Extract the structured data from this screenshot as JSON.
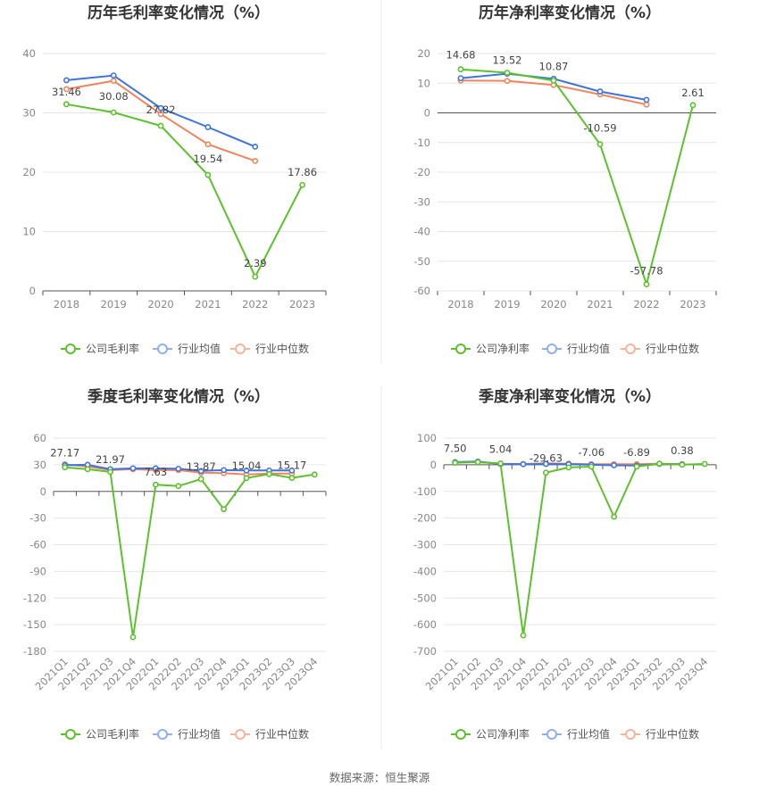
{
  "chart_data": [
    {
      "type": "line",
      "title": "历年毛利率变化情况（%）",
      "categories": [
        "2018",
        "2019",
        "2020",
        "2021",
        "2022",
        "2023"
      ],
      "ylim": [
        0,
        40
      ],
      "yticks": [
        0,
        10,
        20,
        30,
        40
      ],
      "series": [
        {
          "name": "公司毛利率",
          "color": "#5cc12d",
          "values": [
            31.46,
            30.08,
            27.82,
            19.54,
            2.39,
            17.86
          ],
          "labels": [
            "31.46",
            "30.08",
            "27.82",
            "19.54",
            "2.39",
            "17.86"
          ]
        },
        {
          "name": "行业均值",
          "color": "#3f74dc",
          "values": [
            35.5,
            36.3,
            30.8,
            27.6,
            24.3,
            null
          ]
        },
        {
          "name": "行业中位数",
          "color": "#f0855d",
          "values": [
            34.0,
            35.4,
            29.8,
            24.7,
            21.9,
            null
          ]
        }
      ]
    },
    {
      "type": "line",
      "title": "历年净利率变化情况（%）",
      "categories": [
        "2018",
        "2019",
        "2020",
        "2021",
        "2022",
        "2023"
      ],
      "ylim": [
        -60,
        20
      ],
      "yticks": [
        -60,
        -50,
        -40,
        -30,
        -20,
        -10,
        0,
        10,
        20
      ],
      "series": [
        {
          "name": "公司净利率",
          "color": "#5cc12d",
          "values": [
            14.68,
            13.52,
            10.87,
            -10.59,
            -57.78,
            2.61
          ],
          "labels": [
            "14.68",
            "13.52",
            "10.87",
            "-10.59",
            "-57.78",
            "2.61"
          ]
        },
        {
          "name": "行业均值",
          "color": "#3f74dc",
          "values": [
            11.7,
            13.2,
            11.5,
            7.2,
            4.4,
            null
          ]
        },
        {
          "name": "行业中位数",
          "color": "#f0855d",
          "values": [
            10.9,
            10.8,
            9.4,
            6.2,
            2.8,
            null
          ]
        }
      ]
    },
    {
      "type": "line",
      "title": "季度毛利率变化情况（%）",
      "categories": [
        "2021Q1",
        "2021Q2",
        "2021Q3",
        "2021Q4",
        "2022Q1",
        "2022Q2",
        "2022Q3",
        "2022Q4",
        "2023Q1",
        "2023Q2",
        "2023Q3",
        "2023Q4"
      ],
      "ylim": [
        -180,
        60
      ],
      "yticks": [
        -180,
        -150,
        -120,
        -90,
        -60,
        -30,
        0,
        30,
        60
      ],
      "series": [
        {
          "name": "公司毛利率",
          "color": "#5cc12d",
          "values": [
            27.17,
            25.0,
            21.97,
            -164.0,
            7.63,
            6.0,
            13.87,
            -20.0,
            15.04,
            19.5,
            15.17,
            19.0
          ],
          "labels": [
            "27.17",
            "",
            "21.97",
            "",
            "7.63",
            "",
            "13.87",
            "",
            "15.04",
            "",
            "15.17",
            ""
          ]
        },
        {
          "name": "行业均值",
          "color": "#3f74dc",
          "values": [
            29.5,
            30.0,
            25.0,
            26.0,
            26.0,
            25.5,
            23.0,
            24.0,
            23.5,
            23.5,
            23.5,
            null
          ]
        },
        {
          "name": "行业中位数",
          "color": "#f0855d",
          "values": [
            30.5,
            28.0,
            24.0,
            25.0,
            24.0,
            24.0,
            21.0,
            20.5,
            19.0,
            20.0,
            20.0,
            null
          ]
        }
      ]
    },
    {
      "type": "line",
      "title": "季度净利率变化情况（%）",
      "categories": [
        "2021Q1",
        "2021Q2",
        "2021Q3",
        "2021Q4",
        "2022Q1",
        "2022Q2",
        "2022Q3",
        "2022Q4",
        "2023Q1",
        "2023Q2",
        "2023Q3",
        "2023Q4"
      ],
      "ylim": [
        -700,
        100
      ],
      "yticks": [
        -700,
        -600,
        -500,
        -400,
        -300,
        -200,
        -100,
        0,
        100
      ],
      "series": [
        {
          "name": "公司净利率",
          "color": "#5cc12d",
          "values": [
            7.5,
            10.0,
            5.04,
            -640.0,
            -29.63,
            -10.0,
            -7.06,
            -195.0,
            -6.89,
            4.0,
            0.38,
            3.0
          ],
          "labels": [
            "7.50",
            "",
            "5.04",
            "",
            "-29.63",
            "",
            "-7.06",
            "",
            "-6.89",
            "",
            "0.38",
            ""
          ]
        },
        {
          "name": "行业均值",
          "color": "#3f74dc",
          "values": [
            10.0,
            12.0,
            3.0,
            2.0,
            3.0,
            2.0,
            0.0,
            -2.0,
            -3.0,
            3.0,
            2.0,
            null
          ]
        },
        {
          "name": "行业中位数",
          "color": "#f0855d",
          "values": [
            9.0,
            10.0,
            4.0,
            3.0,
            5.0,
            4.0,
            2.0,
            2.0,
            2.0,
            4.0,
            2.0,
            null
          ]
        }
      ]
    }
  ],
  "legend": {
    "margin": [
      "公司毛利率",
      "行业均值",
      "行业中位数"
    ],
    "net": [
      "公司净利率",
      "行业均值",
      "行业中位数"
    ]
  },
  "source": "数据来源：恒生聚源"
}
